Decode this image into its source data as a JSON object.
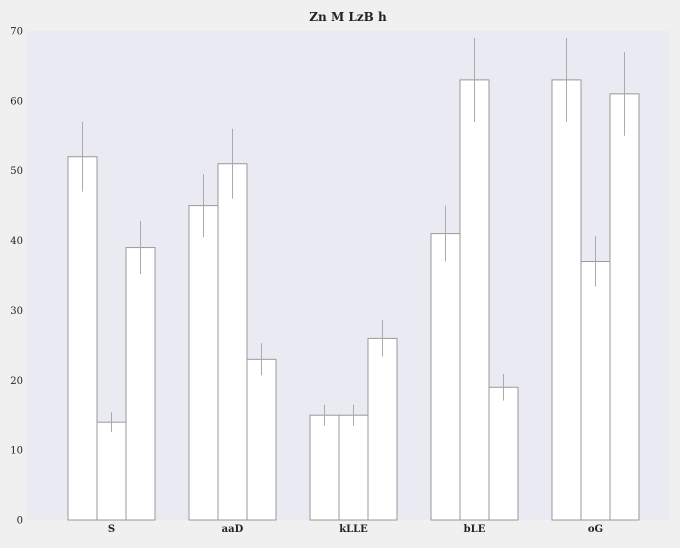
{
  "chart_data": {
    "type": "bar",
    "title": "Zn M LzB h",
    "xlabel": "",
    "ylabel": "",
    "categories": [
      "S",
      "aaD",
      "kLLE",
      "bLE",
      "oG"
    ],
    "series": [
      {
        "values": [
          52,
          45,
          15,
          41,
          63
        ],
        "errors": [
          5.0,
          4.5,
          1.5,
          4.0,
          6.0
        ]
      },
      {
        "values": [
          14,
          51,
          15,
          63,
          37
        ],
        "errors": [
          1.4,
          5.0,
          1.5,
          6.0,
          3.6
        ]
      },
      {
        "values": [
          39,
          23,
          26,
          19,
          61
        ],
        "errors": [
          3.8,
          2.3,
          2.6,
          1.9,
          6.0
        ]
      }
    ],
    "ylim": [
      0,
      70
    ],
    "yticks": [
      0,
      10,
      20,
      30,
      40,
      50,
      60,
      70
    ],
    "grid": false,
    "legend": "none",
    "colors": {
      "background": "#f0f0f0",
      "plot_area": "#eaeaf2",
      "bar_fill": "#ffffff",
      "bar_edge": "#999999",
      "error_bar": "#aaaaaa",
      "text": "#222222"
    }
  }
}
